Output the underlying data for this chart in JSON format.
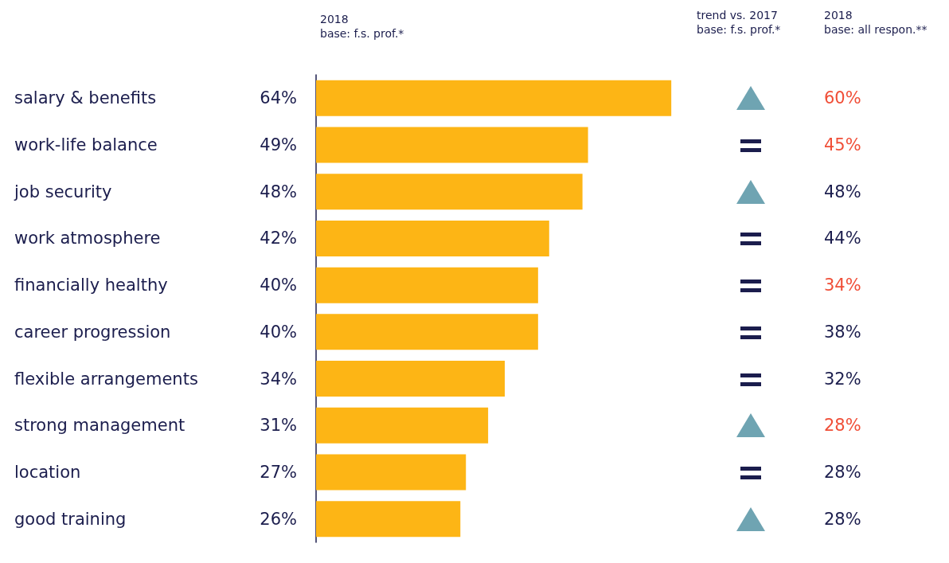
{
  "chart_data": [
    {
      "type": "bar",
      "orientation": "horizontal",
      "title": "2018\nbase: f.s. prof.*",
      "categories": [
        "salary & benefits",
        "work-life balance",
        "job security",
        "work atmosphere",
        "financially healthy",
        "career progression",
        "flexible arrangements",
        "strong management",
        "location",
        "good training"
      ],
      "values": [
        64,
        49,
        48,
        42,
        40,
        40,
        34,
        31,
        27,
        26
      ],
      "color": "#fdb515",
      "value_labels": [
        "64%",
        "49%",
        "48%",
        "42%",
        "40%",
        "40%",
        "34%",
        "31%",
        "27%",
        "26%"
      ]
    },
    {
      "type": "other",
      "title": "trend vs. 2017\nbase: f.s. prof.*"
    },
    {
      "type": "other",
      "title": "2018\nbase: all respon.**",
      "values": [
        60,
        45,
        48,
        44,
        34,
        38,
        32,
        28,
        28,
        28
      ],
      "value_labels": [
        "60%",
        "45%",
        "48%",
        "44%",
        "34%",
        "38%",
        "32%",
        "28%",
        "28%",
        "28%"
      ],
      "colors": [
        "#f04e37",
        "#f04e37",
        "#1b1d4d",
        "#1b1d4d",
        "#f04e37",
        "#1b1d4d",
        "#1b1d4d",
        "#f04e37",
        "#1b1d4d",
        "#1b1d4d"
      ]
    }
  ]
}
